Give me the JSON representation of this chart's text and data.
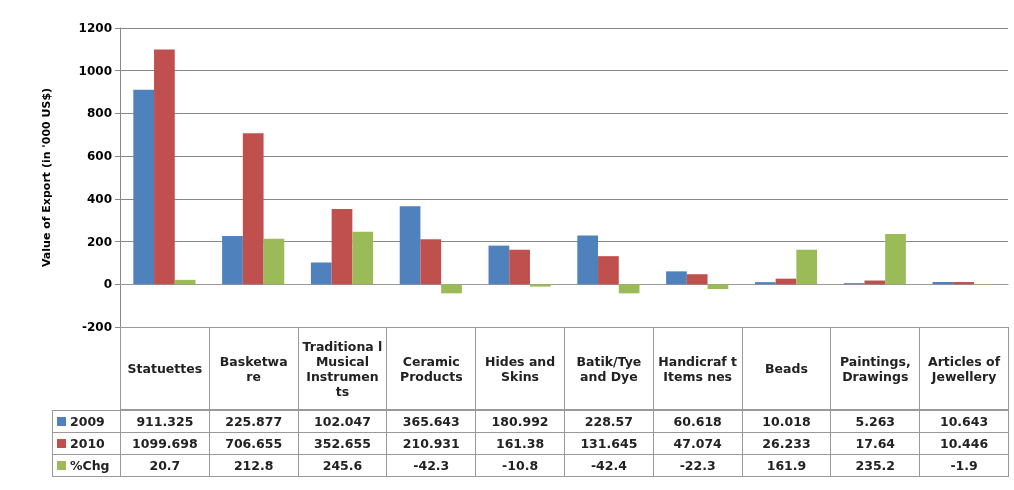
{
  "chart_data": {
    "type": "bar",
    "ylabel": "Value of Export (in '000 US$)",
    "categories": [
      "Statuettes",
      "Basketwa re",
      "Traditiona l Musical Instrumen ts",
      "Ceramic Products",
      "Hides and Skins",
      "Batik/Tye and Dye",
      "Handicraf t Items nes",
      "Beads",
      "Paintings, Drawings",
      "Articles of Jewellery"
    ],
    "series": [
      {
        "name": "2009",
        "color": "#4f81bd",
        "values": [
          911.325,
          225.877,
          102.047,
          365.643,
          180.992,
          228.57,
          60.618,
          10.018,
          5.263,
          10.643
        ]
      },
      {
        "name": "2010",
        "color": "#c0504d",
        "values": [
          1099.698,
          706.655,
          352.655,
          210.931,
          161.38,
          131.645,
          47.074,
          26.233,
          17.64,
          10.446
        ]
      },
      {
        "name": "%Chg",
        "color": "#9bbb59",
        "values": [
          20.7,
          212.8,
          245.6,
          -42.3,
          -10.8,
          -42.4,
          -22.3,
          161.9,
          235.2,
          -1.9
        ]
      }
    ],
    "ylim": [
      -200,
      1200
    ],
    "yticks": [
      -200,
      0,
      200,
      400,
      600,
      800,
      1000,
      1200
    ],
    "grid": "y",
    "legend": "bottom",
    "data_labels": true
  }
}
